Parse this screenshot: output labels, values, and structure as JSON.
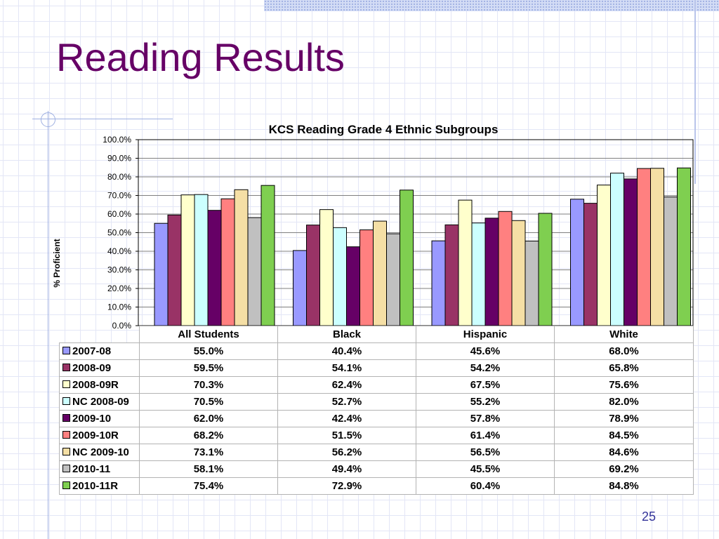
{
  "slide": {
    "title": "Reading Results",
    "page_number": "25"
  },
  "chart_data": {
    "type": "bar",
    "title": "KCS Reading Grade 4 Ethnic Subgroups",
    "xlabel": "",
    "ylabel": "% Proficient",
    "ylim": [
      0,
      100
    ],
    "y_ticks": [
      "0.0%",
      "10.0%",
      "20.0%",
      "30.0%",
      "40.0%",
      "50.0%",
      "60.0%",
      "70.0%",
      "80.0%",
      "90.0%",
      "100.0%"
    ],
    "grid": true,
    "legend": "data-table-left",
    "categories": [
      "All Students",
      "Black",
      "Hispanic",
      "White"
    ],
    "series": [
      {
        "name": "2007-08",
        "color": "#9999ff",
        "values": [
          55.0,
          40.4,
          45.6,
          68.0
        ],
        "labels": [
          "55.0%",
          "40.4%",
          "45.6%",
          "68.0%"
        ]
      },
      {
        "name": "2008-09",
        "color": "#993366",
        "values": [
          59.5,
          54.1,
          54.2,
          65.8
        ],
        "labels": [
          "59.5%",
          "54.1%",
          "54.2%",
          "65.8%"
        ]
      },
      {
        "name": "2008-09R",
        "color": "#ffffcc",
        "values": [
          70.3,
          62.4,
          67.5,
          75.6
        ],
        "labels": [
          "70.3%",
          "62.4%",
          "67.5%",
          "75.6%"
        ]
      },
      {
        "name": "NC 2008-09",
        "color": "#ccffff",
        "values": [
          70.5,
          52.7,
          55.2,
          82.0
        ],
        "labels": [
          "70.5%",
          "52.7%",
          "55.2%",
          "82.0%"
        ]
      },
      {
        "name": "2009-10",
        "color": "#660066",
        "values": [
          62.0,
          42.4,
          57.8,
          78.9
        ],
        "labels": [
          "62.0%",
          "42.4%",
          "57.8%",
          "78.9%"
        ]
      },
      {
        "name": "2009-10R",
        "color": "#ff8080",
        "values": [
          68.2,
          51.5,
          61.4,
          84.5
        ],
        "labels": [
          "68.2%",
          "51.5%",
          "61.4%",
          "84.5%"
        ]
      },
      {
        "name": "NC 2009-10",
        "color": "#f5dfa5",
        "values": [
          73.1,
          56.2,
          56.5,
          84.6
        ],
        "labels": [
          "73.1%",
          "56.2%",
          "56.5%",
          "84.6%"
        ]
      },
      {
        "name": "2010-11",
        "color": "#c0c0c0",
        "values": [
          58.1,
          49.4,
          45.5,
          69.2
        ],
        "labels": [
          "58.1%",
          "49.4%",
          "45.5%",
          "69.2%"
        ]
      },
      {
        "name": "2010-11R",
        "color": "#7fcf50",
        "values": [
          75.4,
          72.9,
          60.4,
          84.8
        ],
        "labels": [
          "75.4%",
          "72.9%",
          "60.4%",
          "84.8%"
        ]
      }
    ]
  }
}
